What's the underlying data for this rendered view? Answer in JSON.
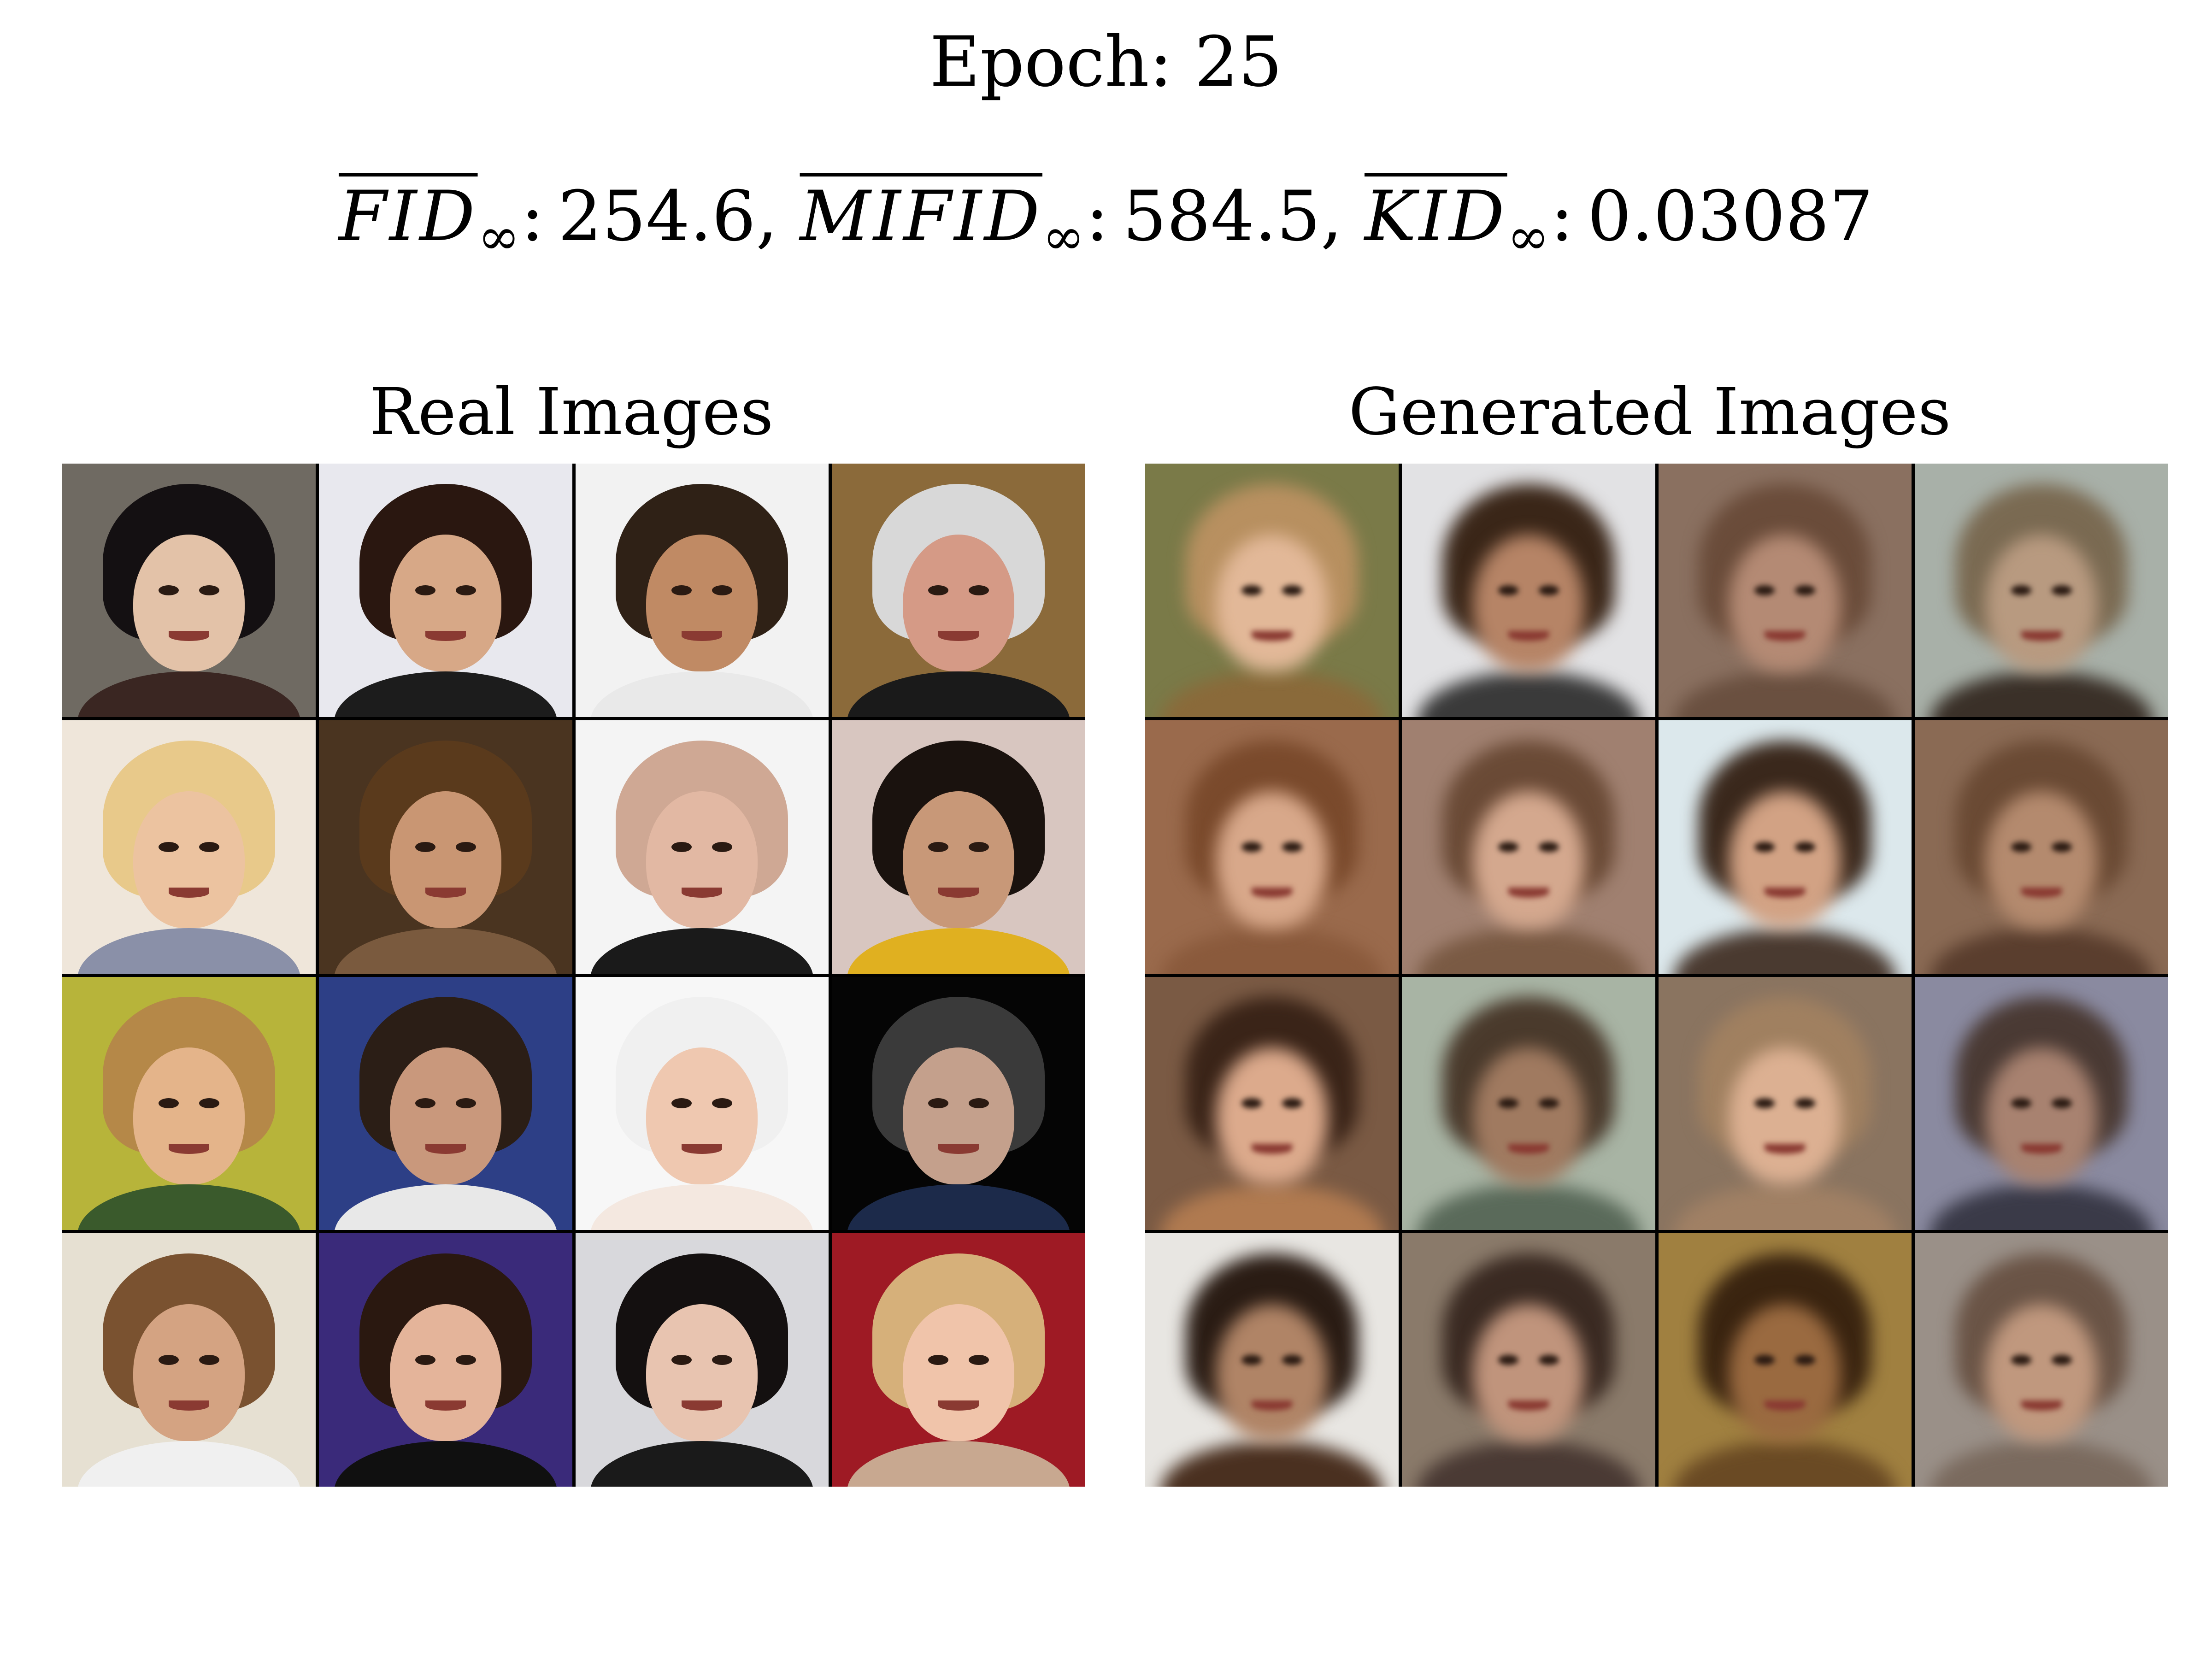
{
  "header": {
    "epoch_title": "Epoch: 25"
  },
  "metrics": [
    {
      "name": "FID",
      "subscript": "∞",
      "value": "254.6",
      "separator": ","
    },
    {
      "name": "MIFID",
      "subscript": "∞",
      "value": "584.5",
      "separator": ","
    },
    {
      "name": "KID",
      "subscript": "∞",
      "value": "0.03087",
      "separator": ""
    }
  ],
  "panels": {
    "real": {
      "title": "Real Images",
      "tiles": [
        {
          "bg": "#6f6a62",
          "hair": "#141012",
          "skin": "#e3c2a8",
          "clothes": "#3a2622"
        },
        {
          "bg": "#e8e8ee",
          "hair": "#2a1710",
          "skin": "#d7a887",
          "clothes": "#1c1c1c"
        },
        {
          "bg": "#f2f2f2",
          "hair": "#2f2116",
          "skin": "#c08a64",
          "clothes": "#e9e9e9"
        },
        {
          "bg": "#8b6a3a",
          "hair": "#d8d8d8",
          "skin": "#d59a86",
          "clothes": "#1a1a1a"
        },
        {
          "bg": "#efe6da",
          "hair": "#e8c98a",
          "skin": "#ecc3a0",
          "clothes": "#8a90a8"
        },
        {
          "bg": "#4a3420",
          "hair": "#5a3a1c",
          "skin": "#c99673",
          "clothes": "#7a5a3e"
        },
        {
          "bg": "#f4f4f4",
          "hair": "#cfa894",
          "skin": "#e2b8a3",
          "clothes": "#1a1a1a"
        },
        {
          "bg": "#d8c6c0",
          "hair": "#1a120e",
          "skin": "#c89878",
          "clothes": "#e0b020"
        },
        {
          "bg": "#b7b43a",
          "hair": "#b58848",
          "skin": "#e4b48a",
          "clothes": "#3a5a2c"
        },
        {
          "bg": "#2d3f86",
          "hair": "#2b1e16",
          "skin": "#c9987c",
          "clothes": "#e8e8e8"
        },
        {
          "bg": "#f7f7f7",
          "hair": "#f0f0f0",
          "skin": "#efc8b0",
          "clothes": "#f4e8e0"
        },
        {
          "bg": "#050505",
          "hair": "#3a3a3a",
          "skin": "#c4a08c",
          "clothes": "#1c2a4a"
        },
        {
          "bg": "#e6e0d2",
          "hair": "#7a5230",
          "skin": "#d4a382",
          "clothes": "#f0f0f0"
        },
        {
          "bg": "#3a2a7a",
          "hair": "#2a1810",
          "skin": "#e4b49a",
          "clothes": "#101010"
        },
        {
          "bg": "#d8d8dc",
          "hair": "#141010",
          "skin": "#e8c4b0",
          "clothes": "#1a1a1a"
        },
        {
          "bg": "#9e1a24",
          "hair": "#d6b07a",
          "skin": "#f0c4aa",
          "clothes": "#c8a890"
        }
      ]
    },
    "generated": {
      "title": "Generated Images",
      "tiles": [
        {
          "bg": "#7a7a48",
          "hair": "#b89060",
          "skin": "#e2b898",
          "clothes": "#8a6a3a"
        },
        {
          "bg": "#e2e2e4",
          "hair": "#3a2618",
          "skin": "#b68466",
          "clothes": "#3a3a3a"
        },
        {
          "bg": "#8a7060",
          "hair": "#6a4c3a",
          "skin": "#b48a74",
          "clothes": "#6a5040"
        },
        {
          "bg": "#a8b0a8",
          "hair": "#7a6a52",
          "skin": "#b89a80",
          "clothes": "#3a3028"
        },
        {
          "bg": "#9a6a4c",
          "hair": "#7a4a2c",
          "skin": "#d8a88a",
          "clothes": "#8a5a3c"
        },
        {
          "bg": "#a08070",
          "hair": "#6a4a36",
          "skin": "#d4a88e",
          "clothes": "#7a5a44"
        },
        {
          "bg": "#dce8ec",
          "hair": "#3a281c",
          "skin": "#d2a284",
          "clothes": "#4a3a30"
        },
        {
          "bg": "#8a6a54",
          "hair": "#6a4a34",
          "skin": "#b48a6e",
          "clothes": "#5a3e2e"
        },
        {
          "bg": "#7a5a44",
          "hair": "#3a2418",
          "skin": "#dcaa8c",
          "clothes": "#b07a50"
        },
        {
          "bg": "#a8b4a4",
          "hair": "#4a3a2c",
          "skin": "#a07a60",
          "clothes": "#5a6a5a"
        },
        {
          "bg": "#8a7460",
          "hair": "#a08060",
          "skin": "#dcb092",
          "clothes": "#a08064"
        },
        {
          "bg": "#8a8aa0",
          "hair": "#4a3a34",
          "skin": "#a88270",
          "clothes": "#3a3a48"
        },
        {
          "bg": "#e8e6e2",
          "hair": "#2a1c14",
          "skin": "#b08466",
          "clothes": "#4a3020"
        },
        {
          "bg": "#8a7a6a",
          "hair": "#3a2a22",
          "skin": "#c0947c",
          "clothes": "#4a3a34"
        },
        {
          "bg": "#a08040",
          "hair": "#3a2410",
          "skin": "#9a6a40",
          "clothes": "#6a4a24"
        },
        {
          "bg": "#9a9088",
          "hair": "#6a5446",
          "skin": "#c0987e",
          "clothes": "#7a6a5e"
        }
      ]
    }
  }
}
